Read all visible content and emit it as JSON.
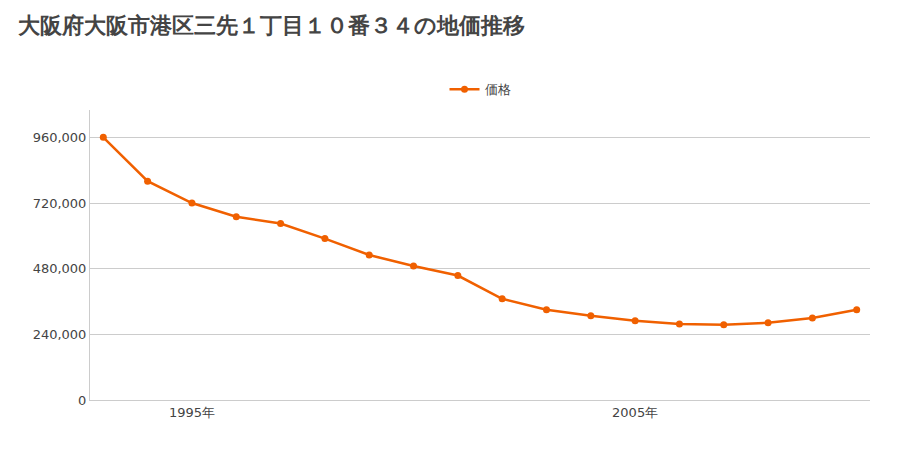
{
  "chart_data": {
    "type": "line",
    "title": "大阪府大阪市港区三先１丁目１０番３４の地価推移",
    "x": [
      1993,
      1994,
      1995,
      1996,
      1997,
      1998,
      1999,
      2000,
      2001,
      2002,
      2003,
      2004,
      2005,
      2006,
      2007,
      2008,
      2009,
      2010
    ],
    "series": [
      {
        "name": "価格",
        "color": "#f06000",
        "marker": "circle",
        "values": [
          960000,
          800000,
          720000,
          670000,
          645000,
          590000,
          530000,
          490000,
          455000,
          370000,
          330000,
          308000,
          290000,
          278000,
          275000,
          282000,
          300000,
          330000
        ]
      }
    ],
    "xlim": [
      1992.7,
      2010.3
    ],
    "xticks": [
      {
        "value": 1995,
        "label": "1995年"
      },
      {
        "value": 2005,
        "label": "2005年"
      }
    ],
    "ylim": [
      0,
      1060000
    ],
    "yticks": [
      0,
      {
        "value": 240000,
        "label": "240,000"
      },
      {
        "value": 480000,
        "label": "480,000"
      },
      {
        "value": 720000,
        "label": "720,000"
      },
      {
        "value": 960000,
        "label": "960,000"
      }
    ],
    "grid": true,
    "legend": "top"
  }
}
